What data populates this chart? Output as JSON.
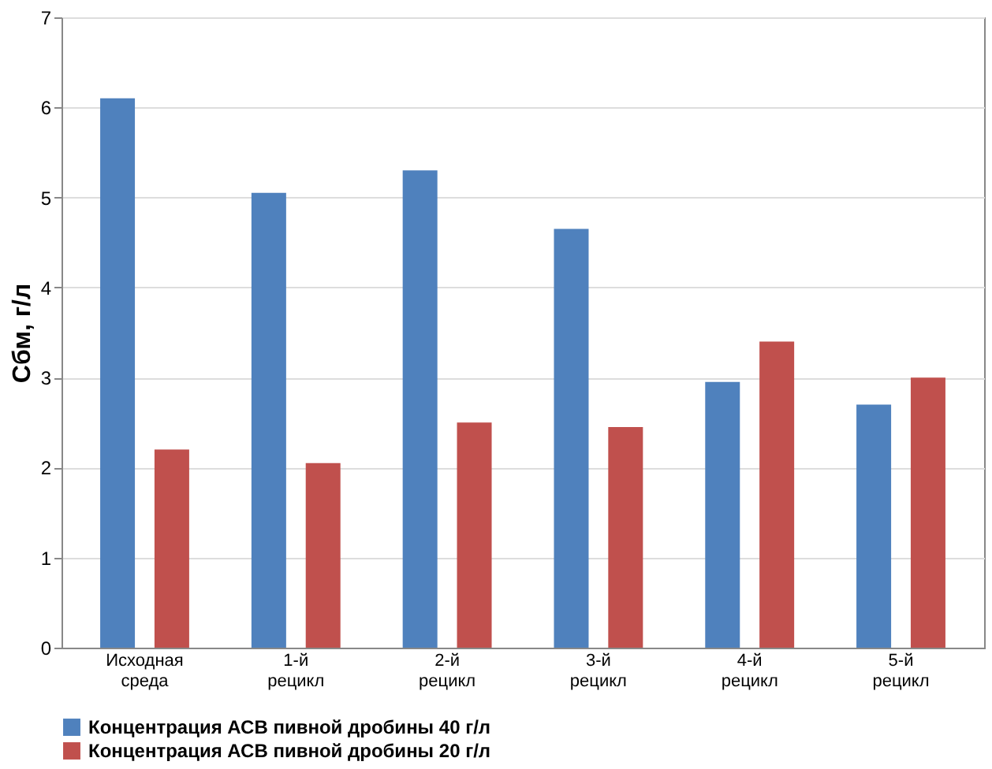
{
  "chart_data": {
    "type": "bar",
    "ylabel": "Cбм, г/л",
    "categories": [
      "Исходная среда",
      "1-й рецикл",
      "2-й рецикл",
      "3-й рецикл",
      "4-й рецикл",
      "5-й рецикл"
    ],
    "series": [
      {
        "name": "Концентрация АСВ пивной дробины 40 г/л",
        "color": "#4f81bd",
        "values": [
          6.1,
          5.05,
          5.3,
          4.65,
          2.95,
          2.7
        ]
      },
      {
        "name": "Концентрация АСВ пивной дробины 20 г/л",
        "color": "#c0504d",
        "values": [
          2.2,
          2.05,
          2.5,
          2.45,
          3.4,
          3.0
        ]
      }
    ],
    "ylim": [
      0,
      7
    ],
    "yticks": [
      0,
      1,
      2,
      3,
      4,
      5,
      6,
      7
    ],
    "grid": "y",
    "legend": "bottom"
  }
}
